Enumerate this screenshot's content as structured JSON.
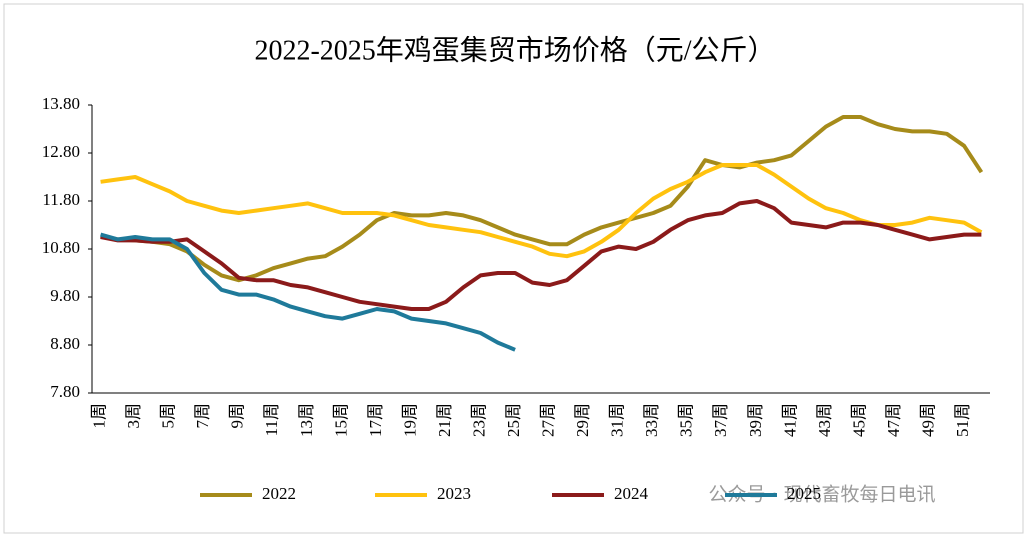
{
  "chart_data": {
    "type": "line",
    "title": "2022-2025年鸡蛋集贸市场价格（元/公斤）",
    "categories": [
      "1周",
      null,
      "3周",
      null,
      "5周",
      null,
      "7周",
      null,
      "9周",
      null,
      "11周",
      null,
      "13周",
      null,
      "15周",
      null,
      "17周",
      null,
      "19周",
      null,
      "21周",
      null,
      "23周",
      null,
      "25周",
      null,
      "27周",
      null,
      "29周",
      null,
      "31周",
      null,
      "33周",
      null,
      "35周",
      null,
      "37周",
      null,
      "39周",
      null,
      "41周",
      null,
      "43周",
      null,
      "45周",
      null,
      "47周",
      null,
      "49周",
      null,
      "51周",
      null
    ],
    "series": [
      {
        "name": "2022",
        "color": "#a68b1a",
        "values": [
          11.07,
          11.0,
          10.98,
          10.95,
          10.9,
          10.75,
          10.47,
          10.25,
          10.15,
          10.25,
          10.4,
          10.5,
          10.6,
          10.65,
          10.85,
          11.1,
          11.4,
          11.55,
          11.5,
          11.5,
          11.55,
          11.5,
          11.4,
          11.25,
          11.1,
          11.0,
          10.9,
          10.9,
          11.1,
          11.25,
          11.35,
          11.45,
          11.55,
          11.7,
          12.1,
          12.65,
          12.55,
          12.5,
          12.6,
          12.65,
          12.75,
          13.05,
          13.35,
          13.55,
          13.55,
          13.4,
          13.3,
          13.25,
          13.25,
          13.2,
          12.95,
          12.4
        ]
      },
      {
        "name": "2023",
        "color": "#ffc20e",
        "values": [
          12.2,
          12.25,
          12.3,
          12.15,
          12.0,
          11.8,
          11.7,
          11.6,
          11.55,
          11.6,
          11.65,
          11.7,
          11.75,
          11.65,
          11.55,
          11.55,
          11.55,
          11.5,
          11.4,
          11.3,
          11.25,
          11.2,
          11.15,
          11.05,
          10.95,
          10.85,
          10.7,
          10.65,
          10.75,
          10.95,
          11.2,
          11.55,
          11.85,
          12.05,
          12.2,
          12.4,
          12.55,
          12.55,
          12.55,
          12.35,
          12.1,
          11.85,
          11.65,
          11.55,
          11.4,
          11.3,
          11.3,
          11.35,
          11.45,
          11.4,
          11.35,
          11.15
        ]
      },
      {
        "name": "2024",
        "color": "#8b1a1a",
        "values": [
          11.05,
          10.98,
          10.98,
          10.95,
          10.95,
          11.0,
          10.75,
          10.5,
          10.2,
          10.15,
          10.15,
          10.05,
          10.0,
          9.9,
          9.8,
          9.7,
          9.65,
          9.6,
          9.55,
          9.55,
          9.7,
          10.0,
          10.25,
          10.3,
          10.3,
          10.1,
          10.05,
          10.15,
          10.45,
          10.75,
          10.85,
          10.8,
          10.95,
          11.2,
          11.4,
          11.5,
          11.55,
          11.75,
          11.8,
          11.65,
          11.35,
          11.3,
          11.25,
          11.35,
          11.35,
          11.3,
          11.2,
          11.1,
          11.0,
          11.05,
          11.1,
          11.1
        ]
      },
      {
        "name": "2025",
        "color": "#1f7a9a",
        "values": [
          11.1,
          11.0,
          11.05,
          11.0,
          11.0,
          10.8,
          10.3,
          9.95,
          9.85,
          9.85,
          9.75,
          9.6,
          9.5,
          9.4,
          9.35,
          9.45,
          9.55,
          9.5,
          9.35,
          9.3,
          9.25,
          9.15,
          9.05,
          8.85,
          8.7,
          null,
          null,
          null,
          null,
          null,
          null,
          null,
          null,
          null,
          null,
          null,
          null,
          null,
          null,
          null,
          null,
          null,
          null,
          null,
          null,
          null,
          null,
          null,
          null,
          null,
          null,
          null
        ]
      }
    ],
    "ylim": [
      7.8,
      13.8
    ],
    "yticks": [
      {
        "value": 7.8,
        "label": "7.80"
      },
      {
        "value": 8.8,
        "label": "8.80"
      },
      {
        "value": 9.8,
        "label": "9.80"
      },
      {
        "value": 10.8,
        "label": "10.80"
      },
      {
        "value": 11.8,
        "label": "11.80"
      },
      {
        "value": 12.8,
        "label": "12.80"
      },
      {
        "value": 13.8,
        "label": "13.80"
      }
    ],
    "grid": false,
    "legend": "bottom",
    "watermark": "公众号 · 现代畜牧每日电讯"
  }
}
